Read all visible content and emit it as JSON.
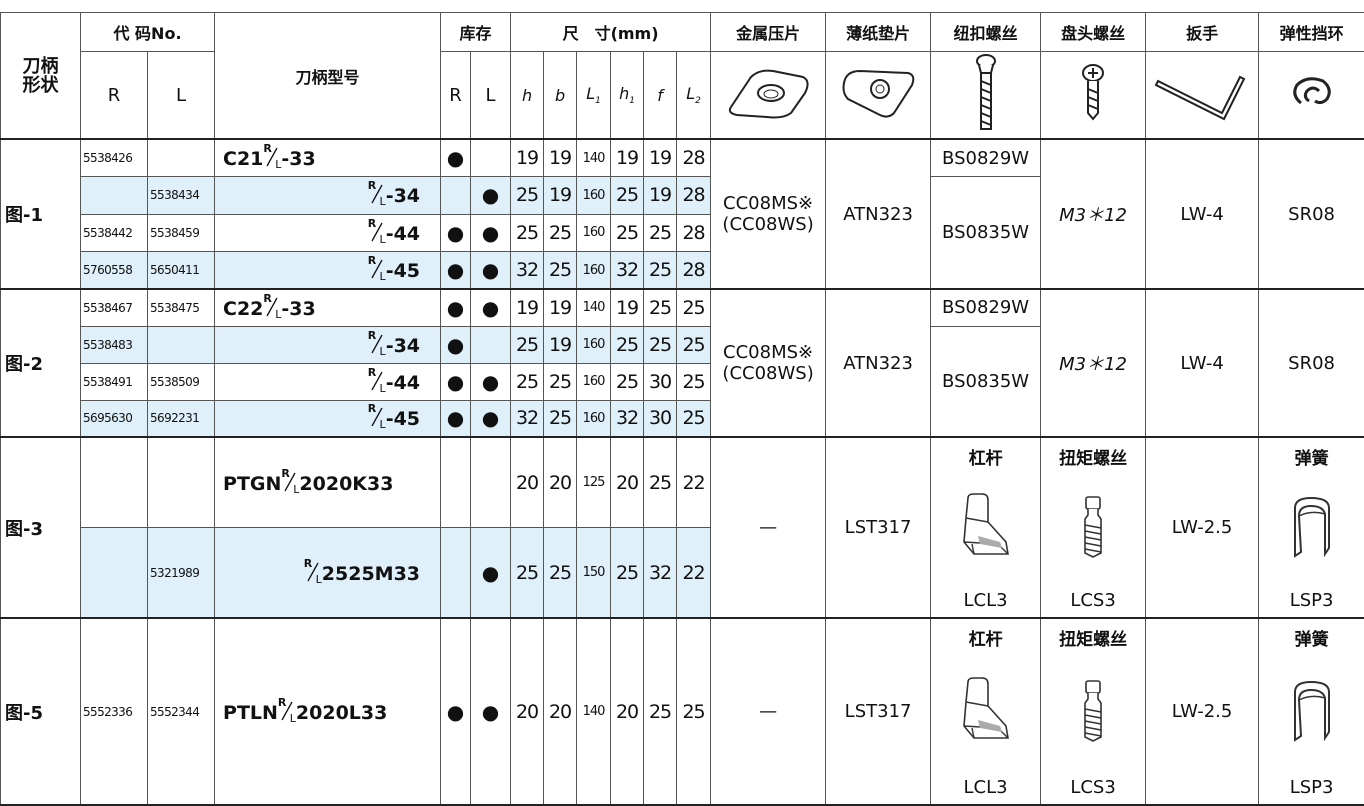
{
  "header": {
    "shape": "刀柄形状",
    "code": "代 码No.",
    "code_cols": [
      "R",
      "L"
    ],
    "model": "刀柄型号",
    "stock": "库存",
    "stock_cols": [
      "R",
      "L"
    ],
    "size": "尺　寸(mm)",
    "dims": [
      {
        "sym": "h"
      },
      {
        "sym": "b"
      },
      {
        "sym": "L",
        "sub": "1"
      },
      {
        "sym": "h",
        "sub": "1"
      },
      {
        "sym": "f"
      },
      {
        "sym": "L",
        "sub": "2"
      }
    ],
    "parts": [
      "金属压片",
      "薄纸垫片",
      "纽扣螺丝",
      "盘头螺丝",
      "扳手",
      "弹性挡环"
    ]
  },
  "groups": [
    {
      "label": "图-1",
      "rows": [
        {
          "code": [
            "5538426",
            null
          ],
          "model": {
            "prefix": "C21",
            "frac": [
              "R",
              "L"
            ],
            "suffix": "-33"
          },
          "stock": [
            "●",
            null
          ],
          "dims": [
            19,
            19,
            140,
            19,
            19,
            28
          ]
        },
        {
          "code": [
            null,
            "5538434"
          ],
          "model": {
            "frac": [
              "R",
              "L"
            ],
            "suffix": "-34"
          },
          "stock": [
            null,
            "●"
          ],
          "dims": [
            25,
            19,
            160,
            25,
            19,
            28
          ]
        },
        {
          "code": [
            "5538442",
            "5538459"
          ],
          "model": {
            "frac": [
              "R",
              "L"
            ],
            "suffix": "-44"
          },
          "stock": [
            "●",
            "●"
          ],
          "dims": [
            25,
            25,
            160,
            25,
            25,
            28
          ]
        },
        {
          "code": [
            "5760558",
            "5650411"
          ],
          "model": {
            "frac": [
              "R",
              "L"
            ],
            "suffix": "-45"
          },
          "stock": [
            "●",
            "●"
          ],
          "dims": [
            32,
            25,
            160,
            32,
            25,
            28
          ]
        }
      ],
      "shim": [
        "CC08MS※",
        "(CC08WS)"
      ],
      "pad": "ATN323",
      "screw": [
        "BS0829W",
        "BS0835W"
      ],
      "pan": "M3＊12",
      "wrench": "LW-4",
      "ring": "SR08"
    },
    {
      "label": "图-2",
      "rows": [
        {
          "code": [
            "5538467",
            "5538475"
          ],
          "model": {
            "prefix": "C22",
            "frac": [
              "R",
              "L"
            ],
            "suffix": "-33"
          },
          "stock": [
            "●",
            "●"
          ],
          "dims": [
            19,
            19,
            140,
            19,
            25,
            25
          ]
        },
        {
          "code": [
            "5538483",
            null
          ],
          "model": {
            "frac": [
              "R",
              "L"
            ],
            "suffix": "-34"
          },
          "stock": [
            "●",
            null
          ],
          "dims": [
            25,
            19,
            160,
            25,
            25,
            25
          ]
        },
        {
          "code": [
            "5538491",
            "5538509"
          ],
          "model": {
            "frac": [
              "R",
              "L"
            ],
            "suffix": "-44"
          },
          "stock": [
            "●",
            "●"
          ],
          "dims": [
            25,
            25,
            160,
            25,
            30,
            25
          ]
        },
        {
          "code": [
            "5695630",
            "5692231"
          ],
          "model": {
            "frac": [
              "R",
              "L"
            ],
            "suffix": "-45"
          },
          "stock": [
            "●",
            "●"
          ],
          "dims": [
            32,
            25,
            160,
            32,
            30,
            25
          ]
        }
      ],
      "shim": [
        "CC08MS※",
        "(CC08WS)"
      ],
      "pad": "ATN323",
      "screw": [
        "BS0829W",
        "BS0835W"
      ],
      "pan": "M3＊12",
      "wrench": "LW-4",
      "ring": "SR08"
    },
    {
      "label": "图-3",
      "rows": [
        {
          "code": [
            null,
            null
          ],
          "model": {
            "prefix": "PTGN",
            "frac": [
              "R",
              "L"
            ],
            "suffix": "2020K33"
          },
          "stock": [
            null,
            null
          ],
          "dims": [
            20,
            20,
            125,
            20,
            25,
            22
          ]
        },
        {
          "code": [
            null,
            "5321989"
          ],
          "model": {
            "frac": [
              "R",
              "L"
            ],
            "suffix": "2525M33"
          },
          "stock": [
            null,
            "●"
          ],
          "dims": [
            25,
            25,
            150,
            25,
            32,
            22
          ]
        }
      ],
      "shim": "—",
      "pad": "LST317",
      "lever": {
        "title": "杠杆",
        "name": "LCL3"
      },
      "torque": {
        "title": "扭矩螺丝",
        "name": "LCS3"
      },
      "wrench": "LW-2.5",
      "spring": {
        "title": "弹簧",
        "name": "LSP3"
      }
    },
    {
      "label": "图-5",
      "rows": [
        {
          "code": [
            "5552336",
            "5552344"
          ],
          "model": {
            "prefix": "PTLN",
            "frac": [
              "R",
              "L"
            ],
            "suffix": "2020L33"
          },
          "stock": [
            "●",
            "●"
          ],
          "dims": [
            20,
            20,
            140,
            20,
            25,
            25
          ]
        }
      ],
      "shim": "—",
      "pad": "LST317",
      "lever": {
        "title": "杠杆",
        "name": "LCL3"
      },
      "torque": {
        "title": "扭矩螺丝",
        "name": "LCS3"
      },
      "wrench": "LW-2.5",
      "spring": {
        "title": "弹簧",
        "name": "LSP3"
      }
    }
  ]
}
